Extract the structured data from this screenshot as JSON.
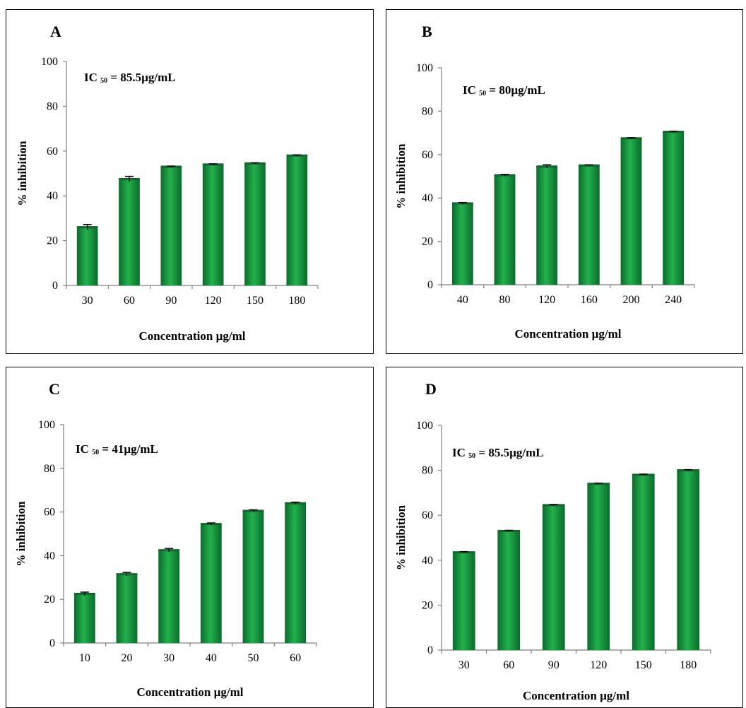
{
  "chart_data": [
    {
      "panel": "A",
      "type": "bar",
      "annotation": {
        "prefix": "IC",
        "sub": "50",
        "suffix": "=  85.5µg/mL"
      },
      "xlabel": "Concentration µg/ml",
      "ylabel": "% inhibition",
      "ylim": [
        0,
        100
      ],
      "yticks": [
        0,
        20,
        40,
        60,
        80,
        100
      ],
      "categories": [
        "30",
        "60",
        "90",
        "120",
        "150",
        "180"
      ],
      "values": [
        26,
        47.5,
        53,
        54,
        54.5,
        58
      ],
      "errors": [
        1.2,
        1.2,
        0.3,
        0.3,
        0.3,
        0.3
      ],
      "grid": false,
      "legend": "none"
    },
    {
      "panel": "B",
      "type": "bar",
      "annotation": {
        "prefix": "IC",
        "sub": "50",
        "suffix": "=  80µg/mL"
      },
      "xlabel": "Concentration µg/ml",
      "ylabel": "% inhibition",
      "ylim": [
        0,
        100
      ],
      "yticks": [
        0,
        20,
        40,
        60,
        80,
        100
      ],
      "categories": [
        "40",
        "80",
        "120",
        "160",
        "200",
        "240"
      ],
      "values": [
        37.5,
        50.5,
        54.5,
        55,
        67.5,
        70.5
      ],
      "errors": [
        0.4,
        0.4,
        0.8,
        0.3,
        0.3,
        0.3
      ],
      "grid": false,
      "legend": "none"
    },
    {
      "panel": "C",
      "type": "bar",
      "annotation": {
        "prefix": "IC",
        "sub": "50",
        "suffix": "=  41µg/mL"
      },
      "xlabel": "Concentration µg/ml",
      "ylabel": "% inhibition",
      "ylim": [
        0,
        100
      ],
      "yticks": [
        0,
        20,
        40,
        60,
        80,
        100
      ],
      "categories": [
        "10",
        "20",
        "30",
        "40",
        "50",
        "60"
      ],
      "values": [
        22.5,
        31.5,
        42.5,
        54.5,
        60.5,
        64
      ],
      "errors": [
        0.8,
        0.8,
        0.8,
        0.5,
        0.5,
        0.5
      ],
      "grid": false,
      "legend": "none"
    },
    {
      "panel": "D",
      "type": "bar",
      "annotation": {
        "prefix": "IC",
        "sub": "50",
        "suffix": "=  85.5µg/mL"
      },
      "xlabel": "Concentration µg/ml",
      "ylabel": "% inhibition",
      "ylim": [
        0,
        100
      ],
      "yticks": [
        0,
        20,
        40,
        60,
        80,
        100
      ],
      "categories": [
        "30",
        "60",
        "90",
        "120",
        "150",
        "180"
      ],
      "values": [
        43.5,
        53,
        64.5,
        74,
        78,
        80
      ],
      "errors": [
        0.3,
        0.3,
        0.3,
        0.3,
        0.3,
        0.3
      ],
      "grid": false,
      "legend": "none"
    }
  ],
  "colors": {
    "bar_dark": "#0b6b2c",
    "bar_light": "#22b14c",
    "axis": "#808080"
  }
}
